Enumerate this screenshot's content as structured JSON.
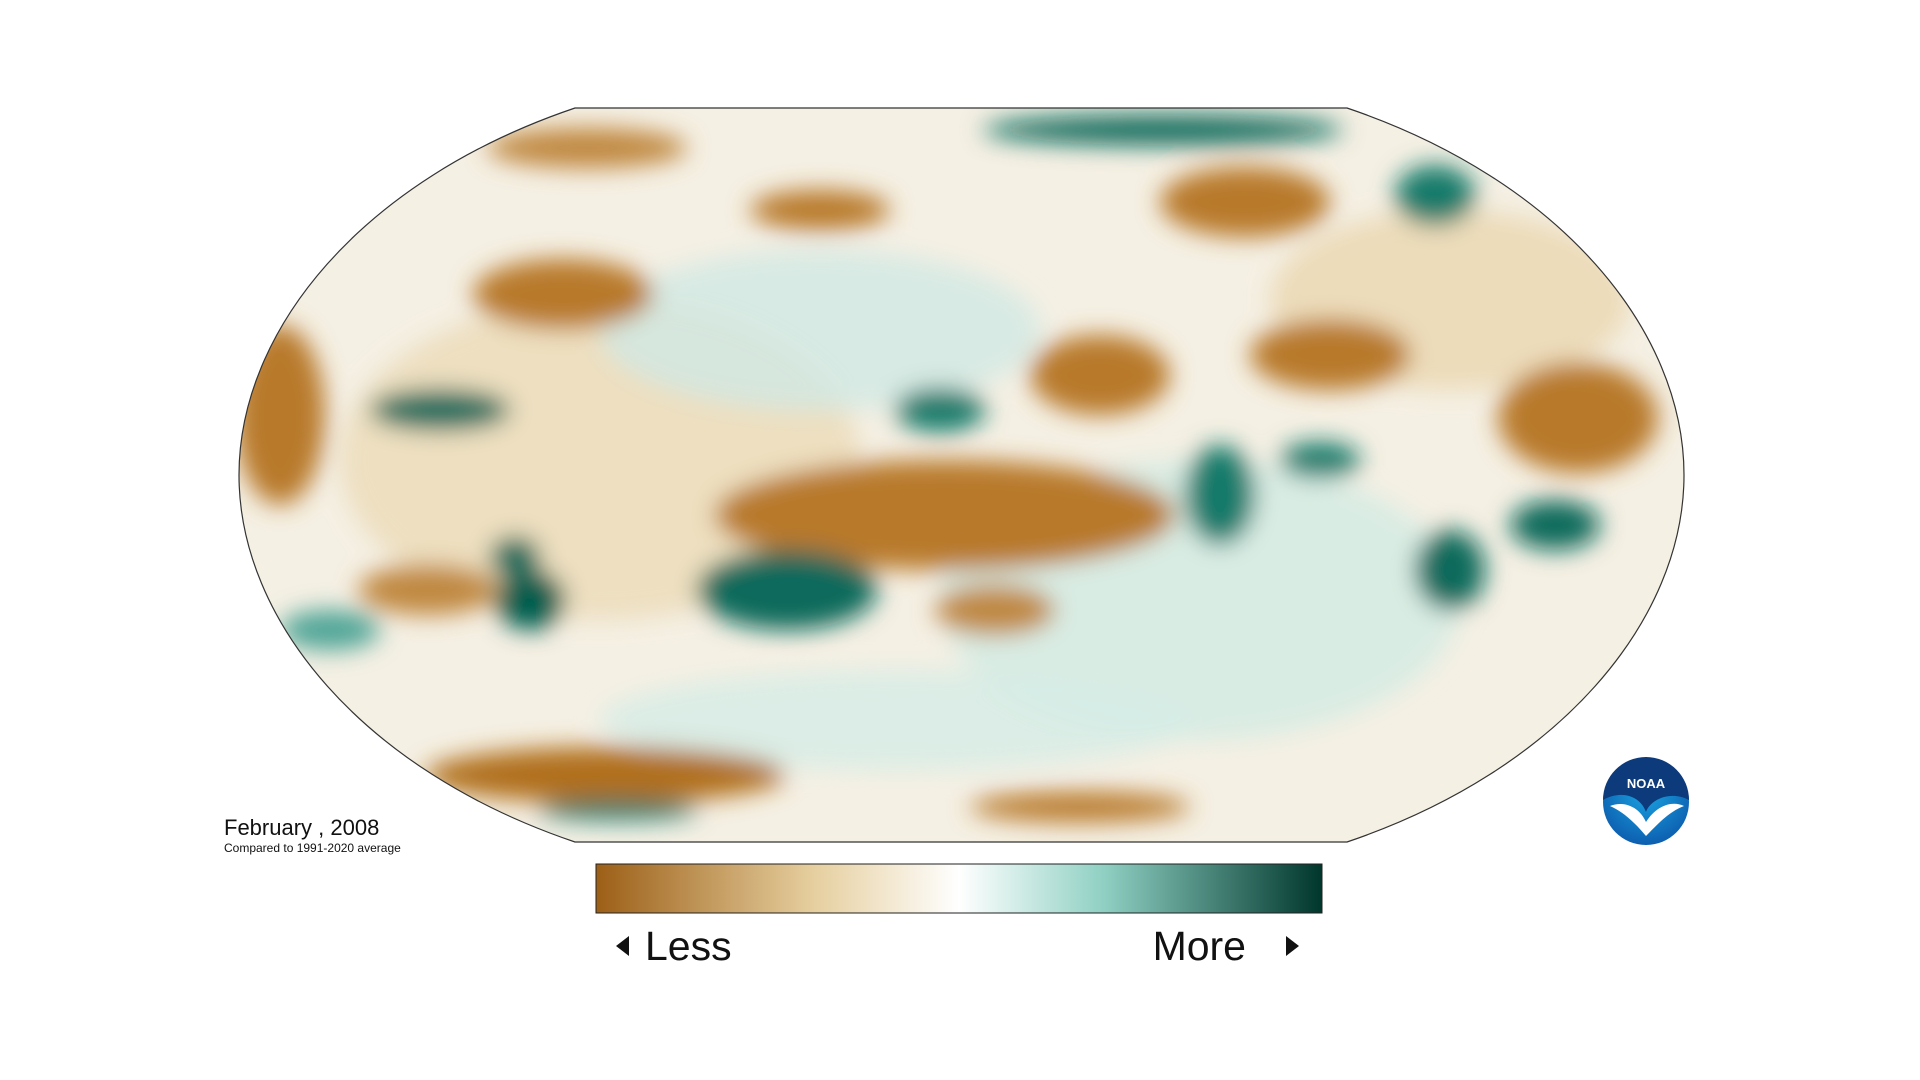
{
  "caption": {
    "title": "February , 2008",
    "subtitle": "Compared to 1991-2020 average"
  },
  "legend": {
    "low": "Less",
    "high": "More"
  },
  "logo": "NOAA"
}
